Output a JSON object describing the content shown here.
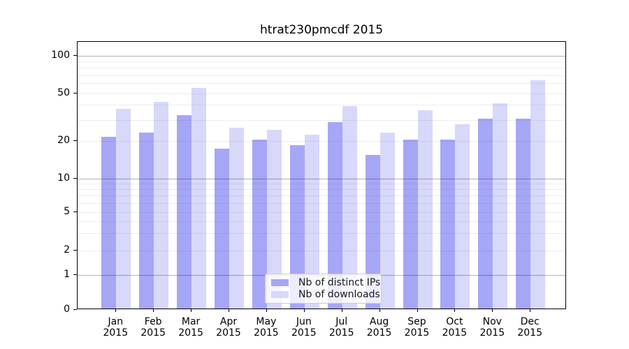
{
  "title": "htrat230pmcdf 2015",
  "chart_data": {
    "type": "bar",
    "title": "htrat230pmcdf 2015",
    "categories": [
      "Jan 2015",
      "Feb 2015",
      "Mar 2015",
      "Apr 2015",
      "May 2015",
      "Jun 2015",
      "Jul 2015",
      "Aug 2015",
      "Sep 2015",
      "Oct 2015",
      "Nov 2015",
      "Dec 2015"
    ],
    "x_ticks": [
      [
        "Jan",
        "2015"
      ],
      [
        "Feb",
        "2015"
      ],
      [
        "Mar",
        "2015"
      ],
      [
        "Apr",
        "2015"
      ],
      [
        "May",
        "2015"
      ],
      [
        "Jun",
        "2015"
      ],
      [
        "Jul",
        "2015"
      ],
      [
        "Aug",
        "2015"
      ],
      [
        "Sep",
        "2015"
      ],
      [
        "Oct",
        "2015"
      ],
      [
        "Nov",
        "2015"
      ],
      [
        "Dec",
        "2015"
      ]
    ],
    "series": [
      {
        "name": "Nb of distinct IPs",
        "color": "#a6a6f7",
        "values": [
          21,
          23,
          32,
          17,
          20,
          18,
          28,
          15,
          20,
          20,
          30,
          30
        ]
      },
      {
        "name": "Nb of downloads",
        "color": "#d8d8fa",
        "values": [
          36,
          41,
          54,
          25,
          24,
          22,
          38,
          23,
          35,
          27,
          40,
          62
        ]
      }
    ],
    "y_ticks": [
      0,
      1,
      2,
      5,
      10,
      20,
      50,
      100
    ],
    "y_major_gridlines": [
      1,
      10,
      100
    ],
    "y_minor_gridlines": [
      2,
      3,
      4,
      5,
      6,
      7,
      8,
      9,
      20,
      30,
      40,
      50,
      60,
      70,
      80,
      90
    ],
    "y_scale": "symlog",
    "ylim": [
      0,
      130
    ],
    "grid": "on",
    "legend_position": "inside-bottom-center"
  }
}
